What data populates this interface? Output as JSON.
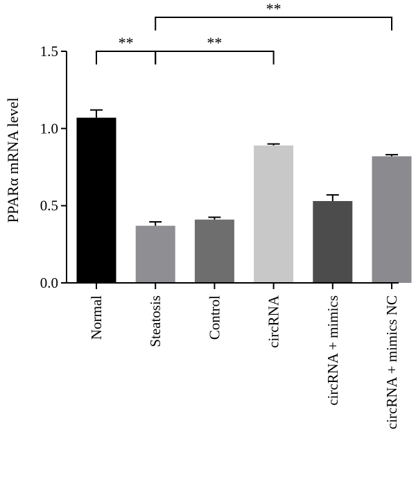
{
  "chart_data": {
    "type": "bar",
    "title": "",
    "xlabel": "",
    "ylabel": "PPARα mRNA level",
    "ylim": [
      0,
      1.5
    ],
    "yticks": [
      0.0,
      0.5,
      1.0,
      1.5
    ],
    "ytick_labels": [
      "0.0",
      "0.5",
      "1.0",
      "1.5"
    ],
    "grid": false,
    "legend": "none",
    "categories": [
      "Normal",
      "Steatosis",
      "Control",
      "circRNA",
      "circRNA + mimics",
      "circRNA + mimics NC"
    ],
    "values": [
      1.07,
      0.37,
      0.41,
      0.89,
      0.53,
      0.82
    ],
    "errors": [
      0.05,
      0.025,
      0.015,
      0.01,
      0.04,
      0.01
    ],
    "colors": [
      "#000000",
      "#8e8e93",
      "#6e6e6e",
      "#c8c8c8",
      "#4c4c4c",
      "#8b8b8f"
    ],
    "significance": [
      {
        "from": 0,
        "to": 1,
        "label": "**",
        "level": 1.5
      },
      {
        "from": 1,
        "to": 3,
        "label": "**",
        "level": 1.5
      },
      {
        "from": 1,
        "to": 5,
        "label": "**",
        "level": 1.72
      }
    ]
  }
}
